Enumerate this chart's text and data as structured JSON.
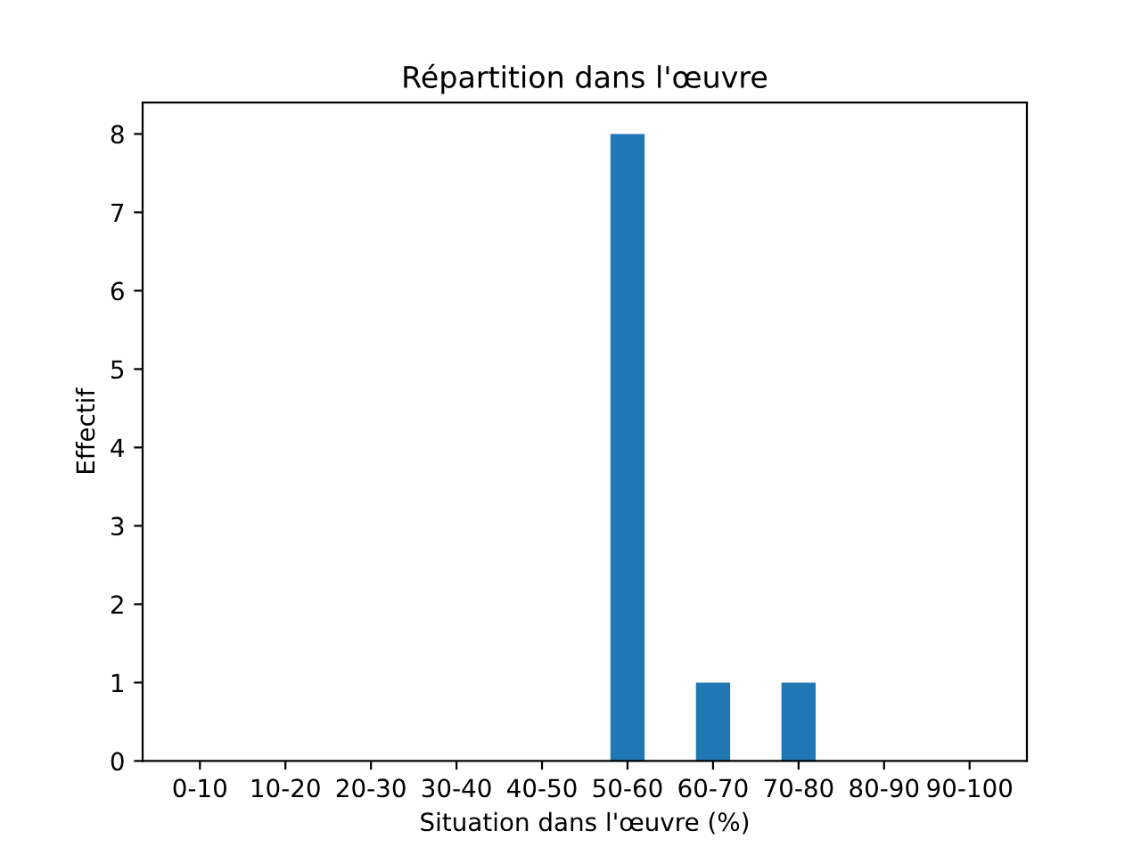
{
  "chart_data": {
    "type": "bar",
    "title": "Répartition dans l'œuvre",
    "xlabel": "Situation dans l'œuvre (%)",
    "ylabel": "Effectif",
    "categories": [
      "0-10",
      "10-20",
      "20-30",
      "30-40",
      "40-50",
      "50-60",
      "60-70",
      "70-80",
      "80-90",
      "90-100"
    ],
    "values": [
      0,
      0,
      0,
      0,
      0,
      8,
      1,
      1,
      0,
      0
    ],
    "color": "#1f77b4",
    "ylim": [
      0,
      8.4
    ],
    "yticks": [
      0,
      1,
      2,
      3,
      4,
      5,
      6,
      7,
      8
    ],
    "grid": false,
    "legend": false
  }
}
